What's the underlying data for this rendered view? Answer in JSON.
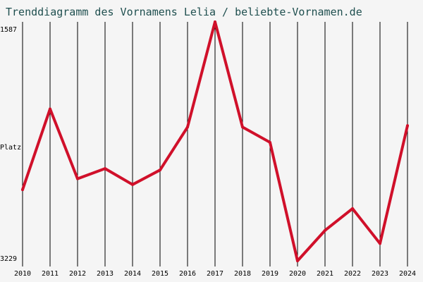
{
  "chart_data": {
    "type": "line",
    "title": "Trenddiagramm des Vornamens Lelia / beliebte-Vornamen.de",
    "xlabel": "",
    "ylabel": "Platz",
    "x": [
      "2010",
      "2011",
      "2012",
      "2013",
      "2014",
      "2015",
      "2016",
      "2017",
      "2018",
      "2019",
      "2020",
      "2021",
      "2022",
      "2023",
      "2024"
    ],
    "series": [
      {
        "values": [
          2740,
          2185,
          2665,
          2595,
          2705,
          2605,
          2310,
          1587,
          2310,
          2415,
          3229,
          3020,
          2870,
          3110,
          2300
        ]
      }
    ],
    "y_tick_labels": [
      "1587",
      "3229"
    ],
    "ylim": [
      1587,
      3229
    ],
    "y_inverted": true,
    "grid": "vertical",
    "line_color": "#d0102a",
    "grid_color": "#000000",
    "background_color": "#f5f5f5"
  }
}
